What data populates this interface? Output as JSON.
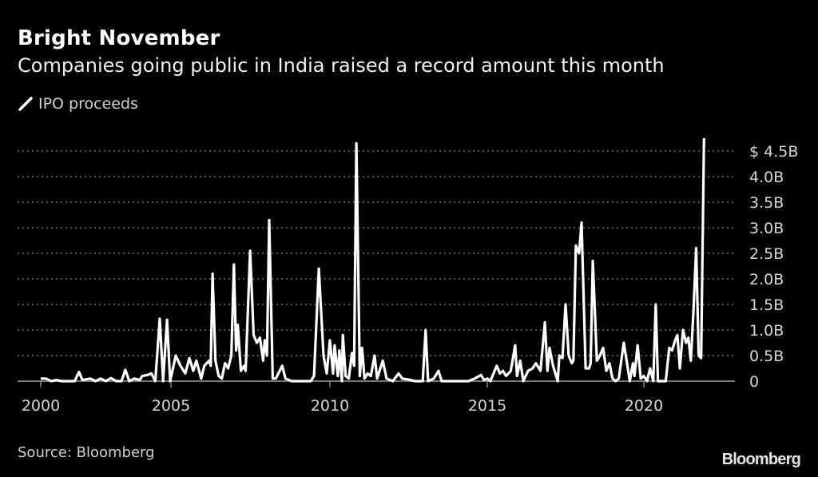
{
  "header": {
    "title": "Bright November",
    "subtitle": "Companies going public in India raised a record amount this month"
  },
  "legend": {
    "icon": "line-slash-icon",
    "label": "IPO proceeds"
  },
  "footer": {
    "source": "Source: Bloomberg",
    "logo": "Bloomberg"
  },
  "colors": {
    "background": "#000000",
    "line": "#ffffff",
    "grid": "#8a8a8a",
    "text": "#d6d6d6"
  },
  "chart_data": {
    "type": "line",
    "title": "Bright November",
    "subtitle": "Companies going public in India raised a record amount this month",
    "xlabel": "",
    "ylabel": "",
    "ylim": [
      0,
      4.8
    ],
    "grid": true,
    "legend_position": "top-left",
    "y_axis_side": "right",
    "y_ticks": [
      0,
      0.5,
      1.0,
      1.5,
      2.0,
      2.5,
      3.0,
      3.5,
      4.0,
      4.5
    ],
    "y_tick_labels": [
      "0",
      "0.5B",
      "1.0B",
      "1.5B",
      "2.0B",
      "2.5B",
      "3.0B",
      "3.5B",
      "4.0B",
      "$ 4.5B"
    ],
    "x_ticks": [
      2000,
      2005,
      2010,
      2015,
      2020
    ],
    "x_tick_labels": [
      "2000",
      "2005",
      "2010",
      "2015",
      "2020"
    ],
    "series": [
      {
        "name": "IPO proceeds",
        "unit": "billion USD",
        "points": [
          [
            2000.0,
            0.05
          ],
          [
            2000.2,
            0.05
          ],
          [
            2000.4,
            0
          ],
          [
            2000.6,
            0.02
          ],
          [
            2000.8,
            0
          ],
          [
            2001.3,
            0
          ],
          [
            2001.47,
            0.18
          ],
          [
            2001.6,
            0.02
          ],
          [
            2001.9,
            0.05
          ],
          [
            2002.1,
            0
          ],
          [
            2002.3,
            0.05
          ],
          [
            2002.5,
            0
          ],
          [
            2002.7,
            0.06
          ],
          [
            2002.9,
            0
          ],
          [
            2003.1,
            0
          ],
          [
            2003.25,
            0.22
          ],
          [
            2003.4,
            0
          ],
          [
            2003.6,
            0.05
          ],
          [
            2003.8,
            0.02
          ],
          [
            2003.9,
            0.1
          ],
          [
            2004.1,
            0.12
          ],
          [
            2004.25,
            0.15
          ],
          [
            2004.4,
            0
          ],
          [
            2004.57,
            1.22
          ],
          [
            2004.7,
            0
          ],
          [
            2004.85,
            1.2
          ],
          [
            2004.97,
            0
          ],
          [
            2005.15,
            0.5
          ],
          [
            2005.3,
            0.3
          ],
          [
            2005.45,
            0.15
          ],
          [
            2005.58,
            0.45
          ],
          [
            2005.7,
            0.2
          ],
          [
            2005.8,
            0.4
          ],
          [
            2005.95,
            0.05
          ],
          [
            2006.05,
            0.3
          ],
          [
            2006.2,
            0.4
          ],
          [
            2006.25,
            0.3
          ],
          [
            2006.31,
            2.1
          ],
          [
            2006.4,
            0.4
          ],
          [
            2006.5,
            0.1
          ],
          [
            2006.6,
            0.05
          ],
          [
            2006.7,
            0.35
          ],
          [
            2006.8,
            0.25
          ],
          [
            2006.9,
            0.5
          ],
          [
            2006.98,
            2.28
          ],
          [
            2007.05,
            0.6
          ],
          [
            2007.1,
            1.1
          ],
          [
            2007.2,
            0.2
          ],
          [
            2007.3,
            0.3
          ],
          [
            2007.35,
            0.2
          ],
          [
            2007.49,
            2.55
          ],
          [
            2007.6,
            0.9
          ],
          [
            2007.7,
            0.75
          ],
          [
            2007.8,
            0.85
          ],
          [
            2007.9,
            0.4
          ],
          [
            2007.95,
            0.8
          ],
          [
            2008.02,
            0.5
          ],
          [
            2008.09,
            3.15
          ],
          [
            2008.2,
            0.05
          ],
          [
            2008.3,
            0.05
          ],
          [
            2008.5,
            0.3
          ],
          [
            2008.6,
            0.05
          ],
          [
            2008.8,
            0
          ],
          [
            2009.4,
            0
          ],
          [
            2009.5,
            0.1
          ],
          [
            2009.65,
            2.2
          ],
          [
            2009.8,
            0.5
          ],
          [
            2009.9,
            0.15
          ],
          [
            2010.0,
            0.8
          ],
          [
            2010.1,
            0.15
          ],
          [
            2010.15,
            0.7
          ],
          [
            2010.25,
            0.1
          ],
          [
            2010.3,
            0.6
          ],
          [
            2010.38,
            0
          ],
          [
            2010.41,
            0.9
          ],
          [
            2010.5,
            0.1
          ],
          [
            2010.6,
            0.05
          ],
          [
            2010.7,
            0.55
          ],
          [
            2010.77,
            0.3
          ],
          [
            2010.84,
            4.65
          ],
          [
            2010.95,
            0.1
          ],
          [
            2011.02,
            0.65
          ],
          [
            2011.1,
            0.05
          ],
          [
            2011.2,
            0.15
          ],
          [
            2011.3,
            0.1
          ],
          [
            2011.42,
            0.5
          ],
          [
            2011.5,
            0.05
          ],
          [
            2011.68,
            0.4
          ],
          [
            2011.8,
            0.05
          ],
          [
            2012.0,
            0
          ],
          [
            2012.18,
            0.15
          ],
          [
            2012.3,
            0.05
          ],
          [
            2012.5,
            0.03
          ],
          [
            2012.7,
            0
          ],
          [
            2012.95,
            0
          ],
          [
            2013.04,
            1.0
          ],
          [
            2013.12,
            0
          ],
          [
            2013.3,
            0.05
          ],
          [
            2013.45,
            0.2
          ],
          [
            2013.55,
            0
          ],
          [
            2014.4,
            0
          ],
          [
            2014.6,
            0.05
          ],
          [
            2014.8,
            0.12
          ],
          [
            2014.9,
            0.02
          ],
          [
            2015.0,
            0.05
          ],
          [
            2015.1,
            0
          ],
          [
            2015.3,
            0.3
          ],
          [
            2015.4,
            0.15
          ],
          [
            2015.5,
            0.2
          ],
          [
            2015.6,
            0.1
          ],
          [
            2015.75,
            0.2
          ],
          [
            2015.89,
            0.7
          ],
          [
            2015.95,
            0.1
          ],
          [
            2016.05,
            0.4
          ],
          [
            2016.15,
            0
          ],
          [
            2016.3,
            0.2
          ],
          [
            2016.45,
            0.25
          ],
          [
            2016.55,
            0.35
          ],
          [
            2016.7,
            0.2
          ],
          [
            2016.84,
            1.15
          ],
          [
            2016.92,
            0.2
          ],
          [
            2016.99,
            0.65
          ],
          [
            2017.1,
            0.3
          ],
          [
            2017.2,
            0.1
          ],
          [
            2017.25,
            0
          ],
          [
            2017.3,
            0.5
          ],
          [
            2017.4,
            0.45
          ],
          [
            2017.5,
            1.5
          ],
          [
            2017.6,
            0.5
          ],
          [
            2017.7,
            0.35
          ],
          [
            2017.75,
            0.4
          ],
          [
            2017.83,
            2.65
          ],
          [
            2017.93,
            2.5
          ],
          [
            2018.01,
            3.1
          ],
          [
            2018.14,
            0.25
          ],
          [
            2018.25,
            0.25
          ],
          [
            2018.3,
            0.35
          ],
          [
            2018.37,
            2.35
          ],
          [
            2018.5,
            0.4
          ],
          [
            2018.6,
            0.5
          ],
          [
            2018.7,
            0.65
          ],
          [
            2018.8,
            0.2
          ],
          [
            2018.9,
            0.35
          ],
          [
            2019.0,
            0.05
          ],
          [
            2019.1,
            0
          ],
          [
            2019.2,
            0.05
          ],
          [
            2019.36,
            0.75
          ],
          [
            2019.5,
            0.2
          ],
          [
            2019.55,
            0
          ],
          [
            2019.65,
            0.35
          ],
          [
            2019.7,
            0.1
          ],
          [
            2019.8,
            0.7
          ],
          [
            2019.9,
            0.05
          ],
          [
            2020.0,
            0.1
          ],
          [
            2020.1,
            0
          ],
          [
            2020.2,
            0.25
          ],
          [
            2020.3,
            0
          ],
          [
            2020.38,
            1.5
          ],
          [
            2020.45,
            0
          ],
          [
            2020.7,
            0
          ],
          [
            2020.81,
            0.65
          ],
          [
            2020.9,
            0.6
          ],
          [
            2021.0,
            0.8
          ],
          [
            2021.07,
            0.9
          ],
          [
            2021.15,
            0.25
          ],
          [
            2021.25,
            1.0
          ],
          [
            2021.35,
            0.75
          ],
          [
            2021.42,
            0.85
          ],
          [
            2021.5,
            0.4
          ],
          [
            2021.58,
            1.3
          ],
          [
            2021.67,
            2.6
          ],
          [
            2021.75,
            0.5
          ],
          [
            2021.83,
            0.45
          ],
          [
            2021.92,
            4.75
          ]
        ]
      }
    ]
  }
}
